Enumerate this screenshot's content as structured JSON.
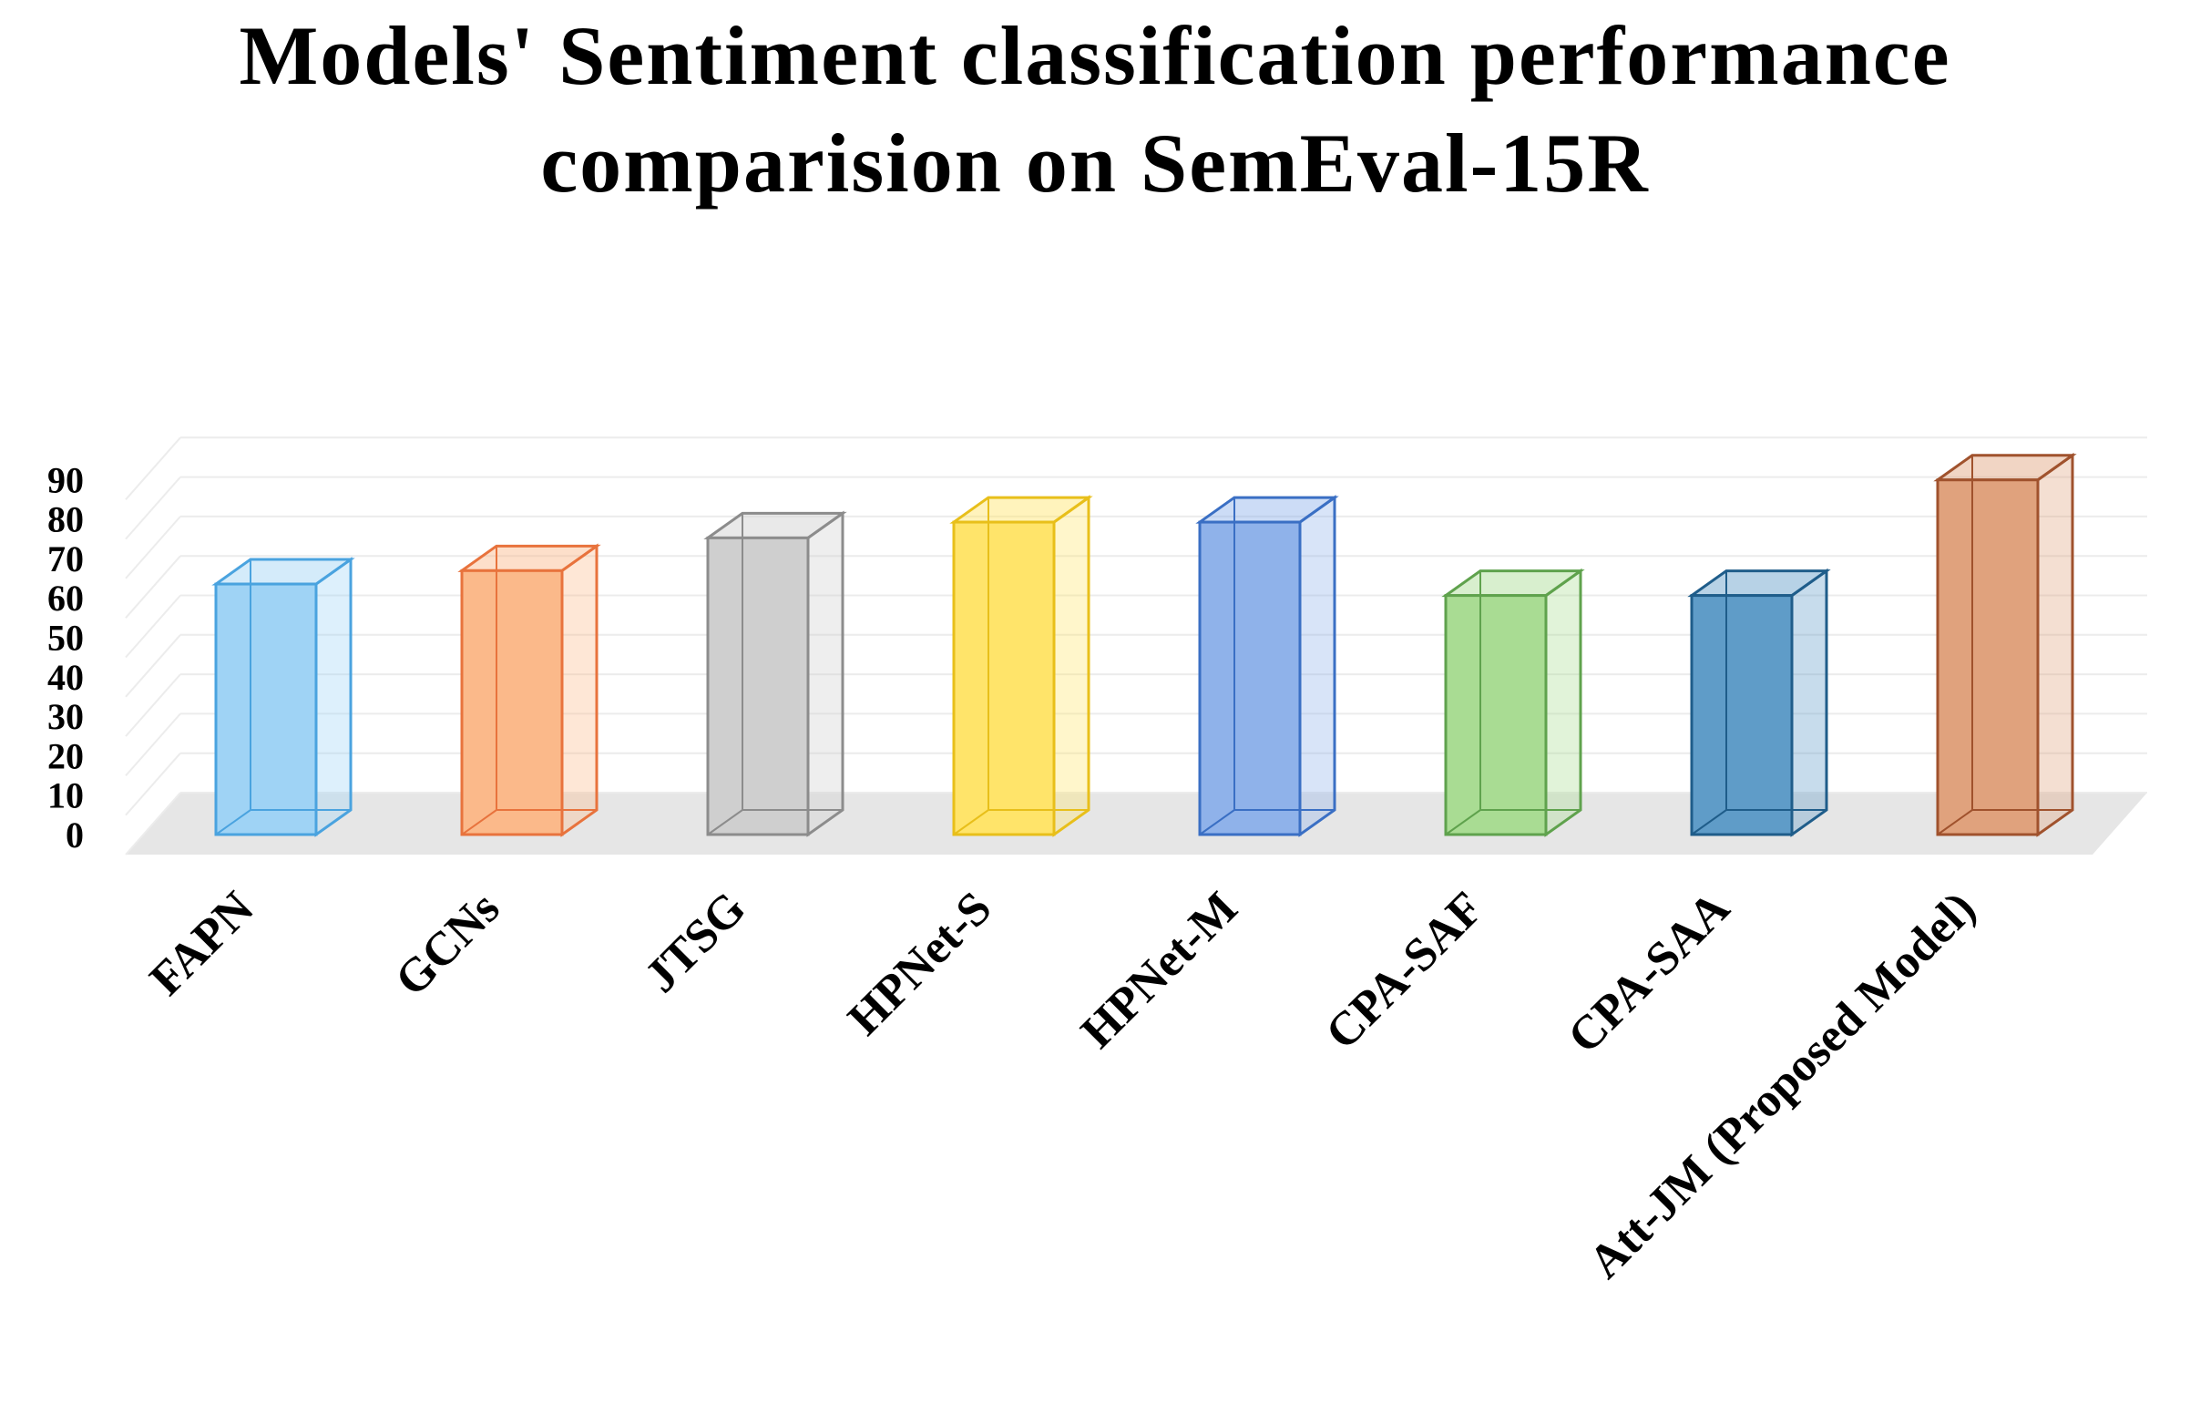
{
  "chart_data": {
    "type": "bar",
    "title_lines": [
      "Models' Sentiment classification performance",
      "comparision on SemEval-15R"
    ],
    "xlabel": "",
    "ylabel": "",
    "categories": [
      "FAPN",
      "GCNs",
      "JTSG",
      "HPNet-S",
      "HPNet-M",
      "CPA-SAF",
      "CPA-SAA",
      "Att-JM (Proposed Model)"
    ],
    "values": [
      63.5,
      66.9,
      75.2,
      79.2,
      79.2,
      60.6,
      60.6,
      89.9
    ],
    "colors": [
      "#9fd3f5",
      "#fbb98a",
      "#cfcfcf",
      "#ffe46a",
      "#8fb2ea",
      "#a9dc93",
      "#5f9cc8",
      "#e0a27d"
    ],
    "edge_colors": [
      "#4aa3df",
      "#e8733d",
      "#8c8c8c",
      "#e8bf1a",
      "#3a6fc4",
      "#5fa24d",
      "#1f5d8a",
      "#a0522d"
    ],
    "y_ticks": [
      0,
      10,
      20,
      30,
      40,
      50,
      60,
      70,
      80,
      90
    ],
    "ylim": [
      0,
      90
    ],
    "grid": true,
    "style": "3d-column"
  }
}
